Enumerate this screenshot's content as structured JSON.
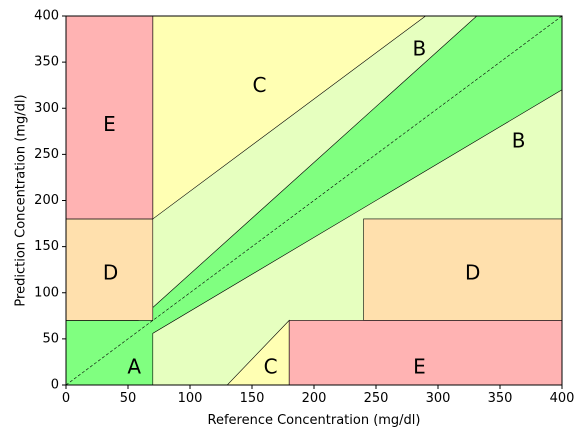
{
  "chart_data": {
    "type": "area",
    "title": "",
    "xlabel": "Reference Concentration (mg/dl)",
    "ylabel": "Prediction Concentration (mg/dl)",
    "xlim": [
      0,
      400
    ],
    "ylim": [
      0,
      400
    ],
    "xticks": [
      0,
      50,
      100,
      150,
      200,
      250,
      300,
      350,
      400
    ],
    "yticks": [
      0,
      50,
      100,
      150,
      200,
      250,
      300,
      350,
      400
    ],
    "grid": false,
    "colors": {
      "A": "#80ff80",
      "B": "#e6ffbf",
      "C": "#ffffb3",
      "D": "#ffe0ad",
      "E": "#ffb3b3"
    },
    "zones": [
      {
        "zone": "B",
        "polygon": [
          [
            0,
            0
          ],
          [
            400,
            0
          ],
          [
            400,
            400
          ],
          [
            0,
            400
          ]
        ]
      },
      {
        "zone": "A",
        "polygon": [
          [
            0,
            0
          ],
          [
            70,
            0
          ],
          [
            70,
            56
          ],
          [
            400,
            320
          ],
          [
            400,
            400
          ],
          [
            331.25,
            400
          ],
          [
            70,
            84
          ],
          [
            58.33,
            70
          ],
          [
            0,
            70
          ]
        ]
      },
      {
        "zone": "C",
        "polygon": [
          [
            70,
            180
          ],
          [
            70,
            400
          ],
          [
            290,
            400
          ]
        ]
      },
      {
        "zone": "C",
        "polygon": [
          [
            130,
            0
          ],
          [
            180,
            0
          ],
          [
            180,
            70
          ]
        ]
      },
      {
        "zone": "D",
        "polygon": [
          [
            0,
            70
          ],
          [
            70,
            70
          ],
          [
            70,
            180
          ],
          [
            0,
            180
          ]
        ]
      },
      {
        "zone": "D",
        "polygon": [
          [
            240,
            70
          ],
          [
            400,
            70
          ],
          [
            400,
            180
          ],
          [
            240,
            180
          ]
        ]
      },
      {
        "zone": "E",
        "polygon": [
          [
            0,
            180
          ],
          [
            70,
            180
          ],
          [
            70,
            400
          ],
          [
            0,
            400
          ]
        ]
      },
      {
        "zone": "E",
        "polygon": [
          [
            180,
            0
          ],
          [
            400,
            0
          ],
          [
            400,
            70
          ],
          [
            180,
            70
          ]
        ]
      }
    ],
    "identity_line": [
      [
        0,
        0
      ],
      [
        400,
        400
      ]
    ],
    "labels": [
      {
        "text": "A",
        "x": 55,
        "y": 20
      },
      {
        "text": "B",
        "x": 285,
        "y": 365
      },
      {
        "text": "B",
        "x": 365,
        "y": 265
      },
      {
        "text": "C",
        "x": 156,
        "y": 325
      },
      {
        "text": "C",
        "x": 165,
        "y": 20
      },
      {
        "text": "D",
        "x": 36,
        "y": 122
      },
      {
        "text": "D",
        "x": 328,
        "y": 122
      },
      {
        "text": "E",
        "x": 35,
        "y": 283
      },
      {
        "text": "E",
        "x": 285,
        "y": 20
      }
    ]
  }
}
